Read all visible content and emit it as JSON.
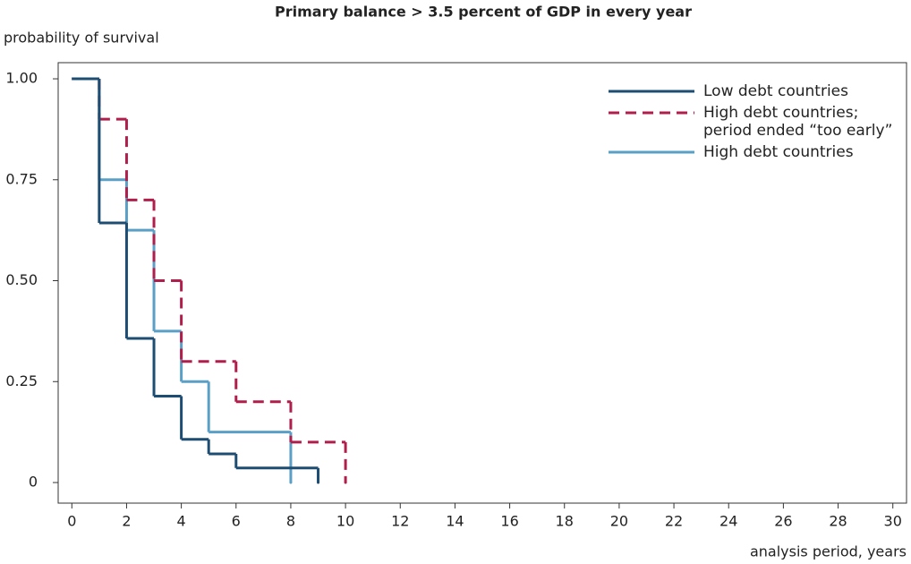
{
  "chart_data": {
    "type": "step",
    "title": "Primary balance > 3.5 percent of GDP in every year",
    "y_label": "probability of survival",
    "x_label": "analysis period, years",
    "xlim": [
      -0.5,
      30.5
    ],
    "xticks": [
      0,
      2,
      4,
      6,
      8,
      10,
      12,
      14,
      16,
      18,
      20,
      22,
      24,
      26,
      28,
      30
    ],
    "ylim": [
      -0.051,
      1.04
    ],
    "yticks": [
      {
        "value": 1,
        "label": "1.00"
      },
      0.75,
      {
        "value": 0.5,
        "label": "0.50"
      },
      0.25,
      0
    ],
    "legend": "top-right",
    "series": [
      {
        "name": "Low debt countries",
        "color": "#1d4d72",
        "line_style": "solid",
        "x": [
          0,
          1,
          2,
          3,
          4,
          5,
          6,
          9
        ],
        "values": [
          1,
          0.643,
          0.357,
          0.214,
          0.107,
          0.071,
          0.036,
          0
        ]
      },
      {
        "name": "High debt countries; period ended “too early”",
        "color": "#b01f4c",
        "line_style": "dashed",
        "x": [
          0,
          1,
          2,
          3,
          4,
          6,
          8,
          10
        ],
        "values": [
          1,
          0.9,
          0.7,
          0.5,
          0.3,
          0.2,
          0.1,
          0
        ]
      },
      {
        "name": "High debt countries",
        "color": "#5a9fc6",
        "line_style": "solid",
        "x": [
          0,
          1,
          2,
          3,
          4,
          5,
          8
        ],
        "values": [
          1,
          0.75,
          0.625,
          0.375,
          0.25,
          0.125,
          0
        ]
      }
    ]
  }
}
